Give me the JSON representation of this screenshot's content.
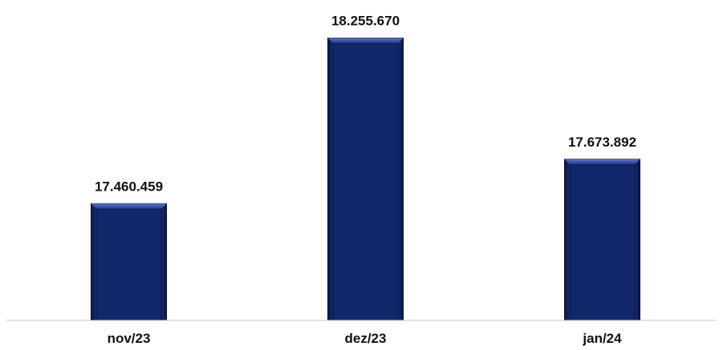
{
  "chart_data": {
    "type": "bar",
    "categories": [
      "nov/23",
      "dez/23",
      "jan/24"
    ],
    "values": [
      17460459,
      18255670,
      17673892
    ],
    "value_labels": [
      "17.460.459",
      "18.255.670",
      "17.673.892"
    ],
    "title": "",
    "xlabel": "",
    "ylabel": "",
    "ylim": [
      16900000,
      18400000
    ],
    "grid": false,
    "legend": "none",
    "colors": {
      "bar_fill": "#13276b",
      "bar_edge_light": "#4a62b8",
      "bar_edge_dark": "#060f33",
      "baseline": "#c8c8c8",
      "text": "#111111"
    }
  }
}
